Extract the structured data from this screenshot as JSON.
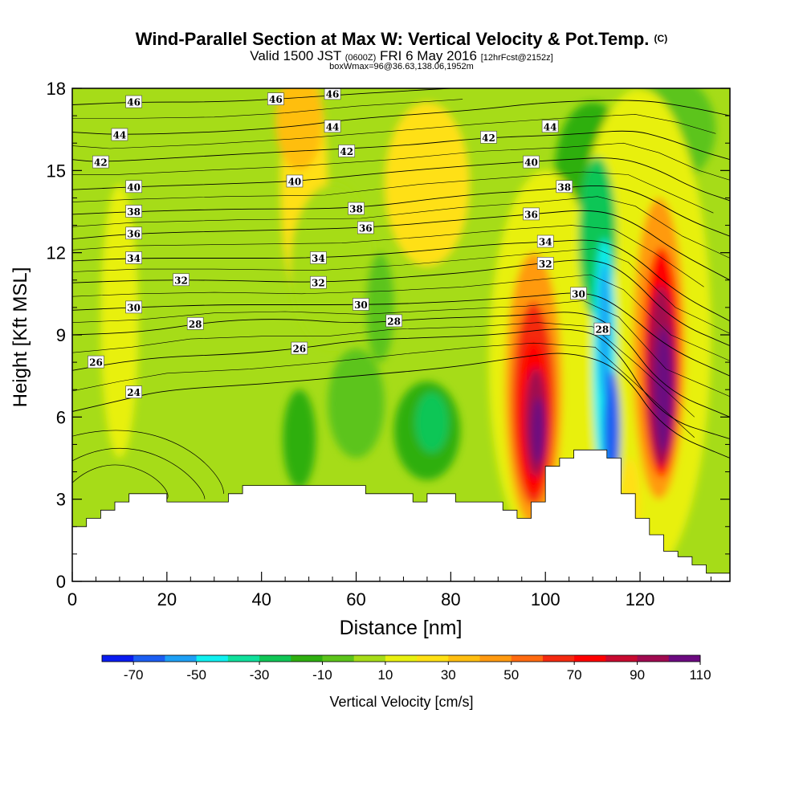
{
  "header": {
    "title": "Wind-Parallel Section at Max W: Vertical Velocity & Pot.Temp.",
    "copyright": "(C)",
    "valid_prefix": "Valid 1500 JST",
    "valid_utc": "(0600Z)",
    "valid_date": "FRI 6 May 2016",
    "forecast": "[12hrFcst@2152z]",
    "box_info": "boxWmax=96@36.63,138.06,1952m"
  },
  "chart_data": {
    "type": "heatmap",
    "xlabel": "Distance [nm]",
    "ylabel": "Height [Kft MSL]",
    "xlim": [
      0,
      139
    ],
    "ylim": [
      0,
      18
    ],
    "x_ticks": [
      "0",
      "20",
      "40",
      "60",
      "80",
      "100",
      "120"
    ],
    "y_ticks": [
      "0",
      "3",
      "6",
      "9",
      "12",
      "15",
      "18"
    ],
    "colorbar": {
      "label": "Vertical Velocity [cm/s]",
      "tick_labels": [
        "-70",
        "-50",
        "-30",
        "-10",
        "10",
        "30",
        "50",
        "70",
        "90",
        "110"
      ],
      "colors": [
        "#0a1cf0",
        "#1c5ef2",
        "#1ea0f5",
        "#10f0f0",
        "#10e09c",
        "#10c656",
        "#2faf10",
        "#5cc41a",
        "#a6dc18",
        "#e8f010",
        "#ffe014",
        "#ffbe10",
        "#ff9a10",
        "#ff6a10",
        "#f42a10",
        "#ff0000",
        "#c80a30",
        "#a00a50",
        "#6c0a80"
      ]
    },
    "terrain": [
      [
        0,
        2.0
      ],
      [
        3,
        2.0
      ],
      [
        3,
        2.3
      ],
      [
        6,
        2.3
      ],
      [
        6,
        2.6
      ],
      [
        9,
        2.6
      ],
      [
        9,
        2.9
      ],
      [
        12,
        2.9
      ],
      [
        12,
        3.2
      ],
      [
        20,
        3.2
      ],
      [
        20,
        2.9
      ],
      [
        33,
        2.9
      ],
      [
        33,
        3.2
      ],
      [
        36,
        3.2
      ],
      [
        36,
        3.5
      ],
      [
        62,
        3.5
      ],
      [
        62,
        3.2
      ],
      [
        72,
        3.2
      ],
      [
        72,
        2.9
      ],
      [
        75,
        2.9
      ],
      [
        75,
        3.2
      ],
      [
        81,
        3.2
      ],
      [
        81,
        2.9
      ],
      [
        91,
        2.9
      ],
      [
        91,
        2.6
      ],
      [
        94,
        2.6
      ],
      [
        94,
        2.3
      ],
      [
        97,
        2.3
      ],
      [
        97,
        2.9
      ],
      [
        100,
        2.9
      ],
      [
        100,
        4.2
      ],
      [
        103,
        4.2
      ],
      [
        103,
        4.5
      ],
      [
        106,
        4.5
      ],
      [
        106,
        4.8
      ],
      [
        113,
        4.8
      ],
      [
        113,
        4.5
      ],
      [
        116,
        4.5
      ],
      [
        116,
        3.2
      ],
      [
        119,
        3.2
      ],
      [
        119,
        2.3
      ],
      [
        122,
        2.3
      ],
      [
        122,
        1.7
      ],
      [
        125,
        1.7
      ],
      [
        125,
        1.1
      ],
      [
        128,
        1.1
      ],
      [
        128,
        0.9
      ],
      [
        131,
        0.9
      ],
      [
        131,
        0.6
      ],
      [
        134,
        0.6
      ],
      [
        134,
        0.3
      ],
      [
        139,
        0.3
      ]
    ],
    "velocity_zones": [
      {
        "x": 49,
        "y": 14.5,
        "rx": 5,
        "ry": 4.5,
        "w": 20
      },
      {
        "x": 48,
        "y": 16.8,
        "rx": 5,
        "ry": 1.8,
        "w": 30
      },
      {
        "x": 55,
        "y": 11.5,
        "rx": 9,
        "ry": 3,
        "w": 2
      },
      {
        "x": 75,
        "y": 14.5,
        "rx": 9,
        "ry": 3,
        "w": 20
      },
      {
        "x": 10,
        "y": 9.5,
        "rx": 4,
        "ry": 5,
        "w": 15
      },
      {
        "x": 48,
        "y": 5.2,
        "rx": 3.5,
        "ry": 1.8,
        "w": -20
      },
      {
        "x": 65,
        "y": 10,
        "rx": 3,
        "ry": 2,
        "w": -5
      },
      {
        "x": 75,
        "y": 5.5,
        "rx": 7,
        "ry": 1.8,
        "w": -20
      },
      {
        "x": 76,
        "y": 5.8,
        "rx": 3.5,
        "ry": 1.1,
        "w": -30
      },
      {
        "x": 60,
        "y": 6.5,
        "rx": 6,
        "ry": 2,
        "w": -10
      },
      {
        "x": 110,
        "y": 15,
        "rx": 8,
        "ry": 2.5,
        "w": -20
      },
      {
        "x": 126,
        "y": 16.5,
        "rx": 10,
        "ry": 2,
        "w": -10
      },
      {
        "x": 120,
        "y": 9,
        "rx": 15,
        "ry": 9,
        "w": 10
      },
      {
        "x": 100,
        "y": 8,
        "rx": 12,
        "ry": 7,
        "w": 10
      },
      {
        "x": 111,
        "y": 12.5,
        "rx": 4,
        "ry": 3,
        "w": -30
      },
      {
        "x": 112.5,
        "y": 8,
        "rx": 2.5,
        "ry": 4.5,
        "w": -45
      },
      {
        "x": 114,
        "y": 5.5,
        "rx": 1.8,
        "ry": 2.2,
        "w": -70
      },
      {
        "x": 112.5,
        "y": 9.2,
        "rx": 1.2,
        "ry": 2.5,
        "w": -60
      },
      {
        "x": 97.5,
        "y": 7,
        "rx": 6,
        "ry": 5,
        "w": 40
      },
      {
        "x": 97.5,
        "y": 6.5,
        "rx": 4.5,
        "ry": 3.7,
        "w": 60
      },
      {
        "x": 97.5,
        "y": 6,
        "rx": 3.3,
        "ry": 2.8,
        "w": 75
      },
      {
        "x": 98,
        "y": 5.8,
        "rx": 2.4,
        "ry": 2,
        "w": 90
      },
      {
        "x": 98.5,
        "y": 5.5,
        "rx": 1.5,
        "ry": 1.2,
        "w": 100
      },
      {
        "x": 124,
        "y": 8.5,
        "rx": 5.5,
        "ry": 5.5,
        "w": 40
      },
      {
        "x": 124.5,
        "y": 8,
        "rx": 4,
        "ry": 4.2,
        "w": 70
      },
      {
        "x": 124.5,
        "y": 7.5,
        "rx": 3,
        "ry": 3.3,
        "w": 95
      },
      {
        "x": 125,
        "y": 7,
        "rx": 2,
        "ry": 2.3,
        "w": 115
      },
      {
        "x": 118,
        "y": 3,
        "rx": 2,
        "ry": 1.5,
        "w": 20
      }
    ],
    "theta_contours": [
      {
        "label": "24",
        "pts": [
          [
            0,
            6.2
          ],
          [
            10,
            6.6
          ],
          [
            20,
            7.0
          ],
          [
            40,
            7.2
          ],
          [
            60,
            7.5
          ],
          [
            80,
            7.8
          ],
          [
            95,
            8.2
          ],
          [
            105,
            8.4
          ],
          [
            116,
            7.8
          ],
          [
            125,
            5.5
          ],
          [
            139,
            4.5
          ]
        ],
        "label_at": [
          13,
          6.9
        ]
      },
      {
        "label": "26",
        "pts": [
          [
            0,
            7.7
          ],
          [
            10,
            8.0
          ],
          [
            20,
            8.2
          ],
          [
            35,
            8.3
          ],
          [
            48,
            8.5
          ],
          [
            60,
            8.8
          ],
          [
            75,
            8.9
          ],
          [
            90,
            9.0
          ],
          [
            105,
            9.3
          ],
          [
            114,
            8.8
          ],
          [
            124,
            6.0
          ],
          [
            139,
            5.2
          ]
        ],
        "label_at": [
          5,
          8.0
        ]
      },
      {
        "label": "28",
        "pts": [
          [
            0,
            9.0
          ],
          [
            15,
            9.1
          ],
          [
            30,
            9.5
          ],
          [
            45,
            9.6
          ],
          [
            60,
            9.4
          ],
          [
            75,
            9.6
          ],
          [
            95,
            9.7
          ],
          [
            107,
            9.9
          ],
          [
            115,
            9.3
          ],
          [
            125,
            7.0
          ],
          [
            139,
            6.0
          ]
        ],
        "label_at": [
          26,
          9.4
        ]
      },
      {
        "label": "30",
        "pts": [
          [
            0,
            9.9
          ],
          [
            13,
            10.0
          ],
          [
            30,
            10.1
          ],
          [
            45,
            10.1
          ],
          [
            63,
            10.1
          ],
          [
            80,
            10.2
          ],
          [
            97,
            10.4
          ],
          [
            109,
            10.6
          ],
          [
            116,
            10.0
          ],
          [
            126,
            8.5
          ],
          [
            139,
            7.5
          ]
        ],
        "label_at": [
          13,
          10.0
        ]
      },
      {
        "label": "32",
        "pts": [
          [
            0,
            10.9
          ],
          [
            15,
            11.0
          ],
          [
            30,
            11.0
          ],
          [
            52,
            10.9
          ],
          [
            70,
            11.1
          ],
          [
            85,
            11.3
          ],
          [
            98,
            11.6
          ],
          [
            110,
            11.8
          ],
          [
            117,
            11.3
          ],
          [
            127,
            9.5
          ],
          [
            139,
            8.6
          ]
        ],
        "label_at": [
          23,
          11.0
        ]
      },
      {
        "label": "34",
        "pts": [
          [
            0,
            11.7
          ],
          [
            13,
            11.8
          ],
          [
            30,
            11.8
          ],
          [
            52,
            11.8
          ],
          [
            70,
            12.0
          ],
          [
            88,
            12.3
          ],
          [
            101,
            12.4
          ],
          [
            111,
            12.5
          ],
          [
            118,
            12.0
          ],
          [
            128,
            10.5
          ],
          [
            139,
            9.5
          ]
        ],
        "label_at": [
          13,
          11.8
        ]
      },
      {
        "label": "36",
        "pts": [
          [
            0,
            12.5
          ],
          [
            13,
            12.7
          ],
          [
            35,
            12.8
          ],
          [
            62,
            12.9
          ],
          [
            82,
            13.2
          ],
          [
            97,
            13.4
          ],
          [
            110,
            13.6
          ],
          [
            118,
            13.2
          ],
          [
            128,
            12.0
          ],
          [
            139,
            11.0
          ]
        ],
        "label_at": [
          13,
          12.7
        ]
      },
      {
        "label": "38",
        "pts": [
          [
            0,
            13.4
          ],
          [
            13,
            13.5
          ],
          [
            35,
            13.6
          ],
          [
            60,
            13.6
          ],
          [
            82,
            14.1
          ],
          [
            100,
            14.3
          ],
          [
            112,
            14.5
          ],
          [
            120,
            14.2
          ],
          [
            130,
            13.2
          ],
          [
            139,
            12.6
          ]
        ],
        "label_at": [
          13,
          13.5
        ]
      },
      {
        "label": "40",
        "pts": [
          [
            0,
            14.3
          ],
          [
            13,
            14.4
          ],
          [
            30,
            14.5
          ],
          [
            47,
            14.6
          ],
          [
            65,
            14.9
          ],
          [
            85,
            15.2
          ],
          [
            104,
            15.4
          ],
          [
            115,
            15.5
          ],
          [
            123,
            15.1
          ],
          [
            132,
            14.3
          ],
          [
            139,
            13.9
          ]
        ],
        "label_at": [
          13,
          14.4
        ]
      },
      {
        "label": "42",
        "pts": [
          [
            0,
            15.4
          ],
          [
            6,
            15.3
          ],
          [
            25,
            15.5
          ],
          [
            46,
            15.7
          ],
          [
            70,
            15.9
          ],
          [
            87,
            16.2
          ],
          [
            105,
            16.3
          ],
          [
            118,
            16.5
          ],
          [
            125,
            16.2
          ],
          [
            133,
            15.7
          ],
          [
            139,
            15.4
          ]
        ],
        "label_at": [
          6,
          15.3
        ]
      },
      {
        "label": "44",
        "pts": [
          [
            0,
            16.4
          ],
          [
            10,
            16.3
          ],
          [
            30,
            16.4
          ],
          [
            47,
            16.6
          ],
          [
            60,
            16.9
          ],
          [
            85,
            17.2
          ],
          [
            100,
            17.5
          ],
          [
            120,
            17.6
          ],
          [
            131,
            17.3
          ],
          [
            139,
            17.0
          ]
        ],
        "label_at": [
          10,
          16.3
        ]
      },
      {
        "label": "46",
        "pts": [
          [
            0,
            17.4
          ],
          [
            13,
            17.5
          ],
          [
            30,
            17.5
          ],
          [
            43,
            17.6
          ],
          [
            60,
            17.8
          ],
          [
            80,
            18.0
          ]
        ],
        "label_at": [
          13,
          17.5
        ]
      }
    ],
    "extra_labels": [
      {
        "text": "46",
        "x": 43,
        "y": 17.6
      },
      {
        "text": "46",
        "x": 55,
        "y": 17.8
      },
      {
        "text": "44",
        "x": 55,
        "y": 16.6
      },
      {
        "text": "44",
        "x": 101,
        "y": 16.6
      },
      {
        "text": "42",
        "x": 58,
        "y": 15.7
      },
      {
        "text": "42",
        "x": 88,
        "y": 16.2
      },
      {
        "text": "40",
        "x": 47,
        "y": 14.6
      },
      {
        "text": "40",
        "x": 97,
        "y": 15.3
      },
      {
        "text": "38",
        "x": 60,
        "y": 13.6
      },
      {
        "text": "38",
        "x": 104,
        "y": 14.4
      },
      {
        "text": "36",
        "x": 62,
        "y": 12.9
      },
      {
        "text": "36",
        "x": 97,
        "y": 13.4
      },
      {
        "text": "34",
        "x": 52,
        "y": 11.8
      },
      {
        "text": "34",
        "x": 100,
        "y": 12.4
      },
      {
        "text": "32",
        "x": 52,
        "y": 10.9
      },
      {
        "text": "32",
        "x": 100,
        "y": 11.6
      },
      {
        "text": "30",
        "x": 61,
        "y": 10.1
      },
      {
        "text": "30",
        "x": 107,
        "y": 10.5
      },
      {
        "text": "28",
        "x": 68,
        "y": 9.5
      },
      {
        "text": "28",
        "x": 112,
        "y": 9.2
      },
      {
        "text": "26",
        "x": 48,
        "y": 8.5
      }
    ]
  }
}
